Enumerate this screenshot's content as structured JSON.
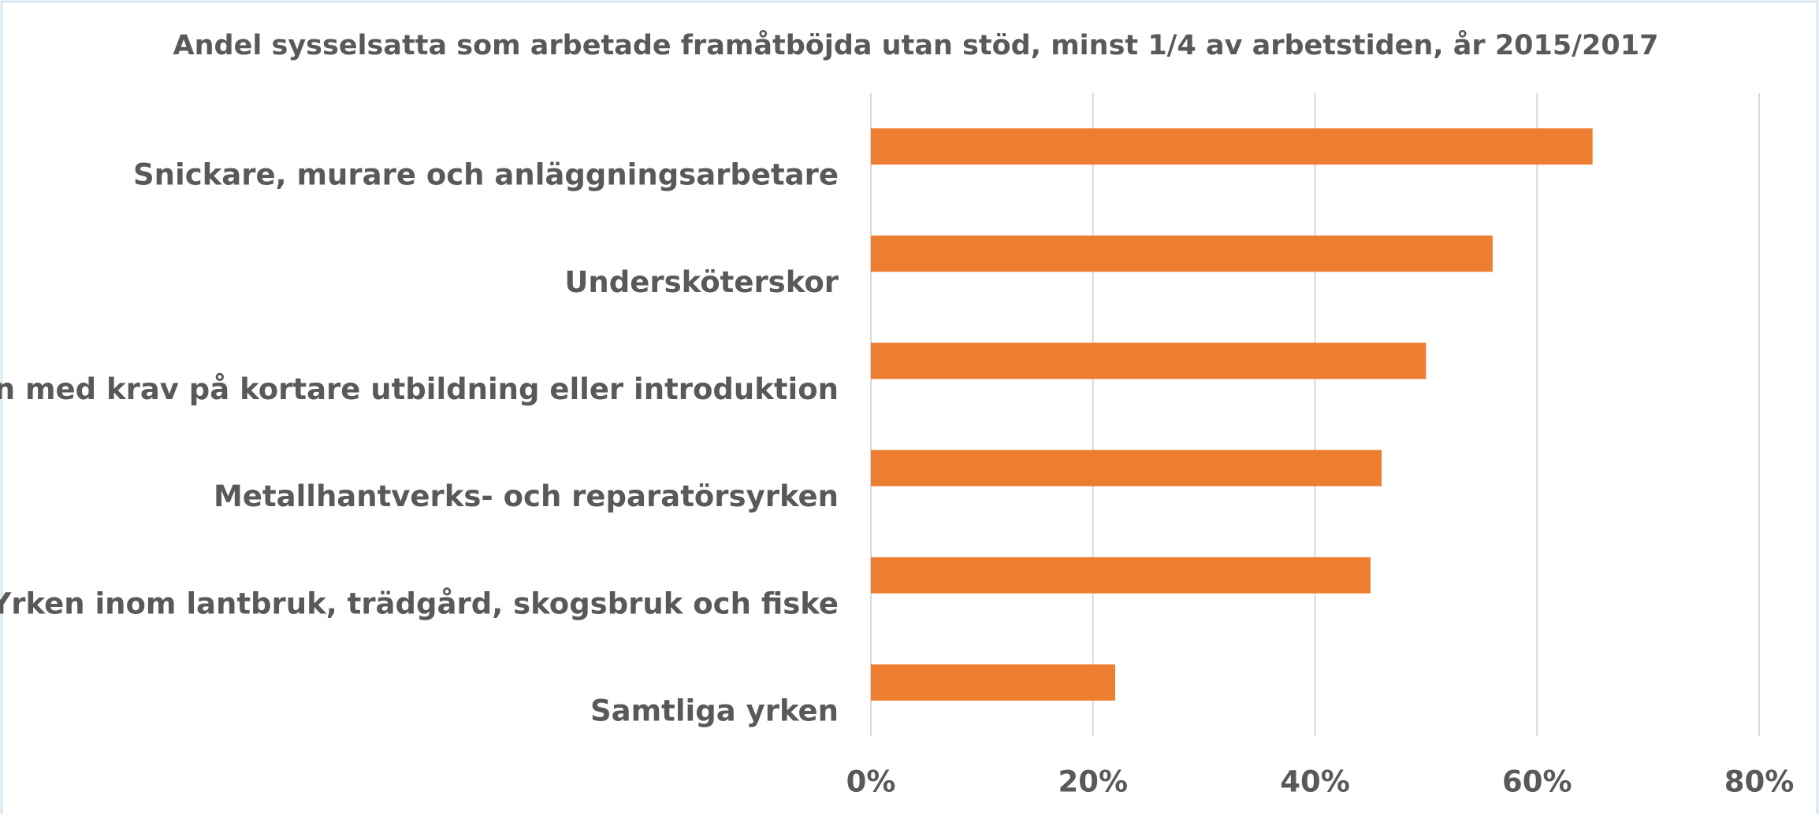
{
  "chart_data": {
    "type": "bar",
    "orientation": "horizontal",
    "title": "Andel sysselsatta som arbetade framåtböjda utan stöd, minst 1/4 av arbetstiden, år 2015/2017",
    "categories": [
      "Snickare, murare och anläggningsarbetare",
      "Undersköterskor",
      "Yrken med krav på kortare utbildning eller introduktion",
      "Metallhantverks- och reparatörsyrken",
      "Yrken inom lantbruk, trädgård, skogsbruk och fiske",
      "Samtliga yrken"
    ],
    "values": [
      65,
      56,
      50,
      46,
      45,
      22
    ],
    "color": "#ed7d31",
    "xlim": [
      0,
      80
    ],
    "xticks": [
      {
        "value": 0,
        "label": "0%"
      },
      {
        "value": 20,
        "label": "20%"
      },
      {
        "value": 40,
        "label": "40%"
      },
      {
        "value": 60,
        "label": "60%"
      },
      {
        "value": 80,
        "label": "80%"
      }
    ],
    "grid": true
  }
}
